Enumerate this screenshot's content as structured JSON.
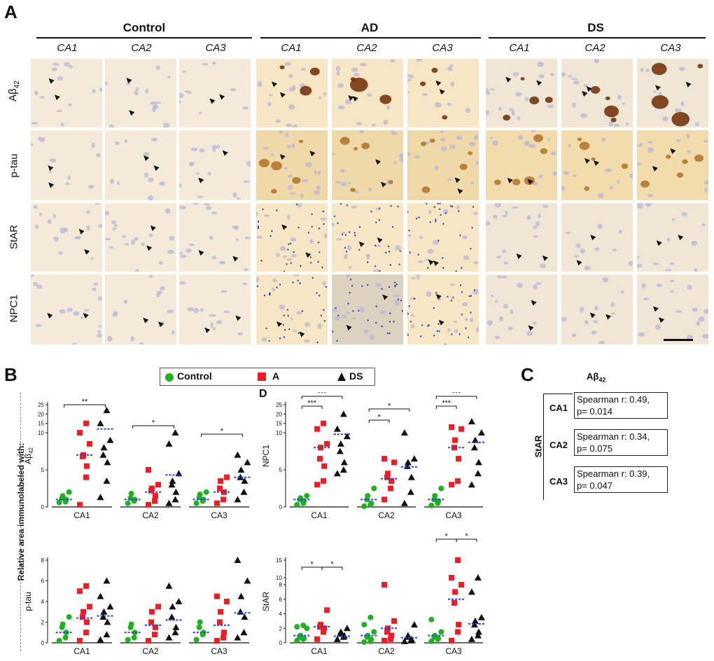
{
  "panelA": {
    "letter": "A",
    "groups": [
      {
        "name": "Control",
        "subs": [
          "CA1",
          "CA2",
          "CA3"
        ]
      },
      {
        "name": "AD",
        "subs": [
          "CA1",
          "CA2",
          "CA3"
        ]
      },
      {
        "name": "DS",
        "subs": [
          "CA1",
          "CA2",
          "CA3"
        ]
      }
    ],
    "rows": [
      "Aβ42",
      "p-tau",
      "StAR",
      "NPC1"
    ],
    "row_label_ab": {
      "base": "Aβ",
      "sub": "42"
    }
  },
  "panelB": {
    "letter": "B",
    "legend": {
      "control": "Control",
      "ad": "A",
      "ds": "DS"
    },
    "colors": {
      "control": "#22b022",
      "ad": "#ee1c24",
      "ds": "#111111",
      "median": "#2a3ff0"
    },
    "ylabel": "Relative area immunolabeled with:"
  },
  "panelD": {
    "letter": "D"
  },
  "panelC": {
    "letter": "C",
    "title_base": "Aβ",
    "title_sub": "42",
    "side_label": "StAR",
    "rows": [
      {
        "region": "CA1",
        "line1": "Spearman r: 0.49,",
        "line2": "p= 0.014"
      },
      {
        "region": "CA2",
        "line1": "Spearman r: 0.34,",
        "line2": "p= 0.075"
      },
      {
        "region": "CA3",
        "line1": "Spearman r: 0.39,",
        "line2": "p= 0.047"
      }
    ]
  },
  "chart_data": [
    {
      "type": "scatter",
      "title": "Aβ42",
      "ylabel": "Aβ42",
      "yticks": [
        "0",
        "5",
        "10",
        "15",
        "20",
        "25"
      ],
      "categories": [
        "CA1",
        "CA2",
        "CA3"
      ],
      "series": [
        {
          "name": "Control",
          "values": [
            [
              0.6,
              0.7,
              1.0,
              1.2,
              1.5,
              2.0
            ],
            [
              0.5,
              0.8,
              1.0,
              1.2,
              1.8
            ],
            [
              0.5,
              0.8,
              1.0,
              1.3,
              1.7,
              2.0
            ]
          ],
          "medians": [
            1.0,
            1.0,
            1.0
          ]
        },
        {
          "name": "A",
          "values": [
            [
              0.3,
              4.0,
              5.5,
              6.8,
              7.0,
              8.5,
              10.0,
              15.0
            ],
            [
              0.3,
              0.8,
              1.5,
              2.2,
              2.5,
              3.0,
              5.0
            ],
            [
              0.5,
              1.0,
              2.0,
              2.5,
              3.5,
              4.0
            ]
          ],
          "medians": [
            7.0,
            2.0,
            2.0
          ]
        },
        {
          "name": "DS",
          "values": [
            [
              1.3,
              3.5,
              6.0,
              7.0,
              8.0,
              9.0,
              15.0,
              22.0
            ],
            [
              0.5,
              1.0,
              2.0,
              3.0,
              3.5,
              4.5,
              8.5,
              10.0
            ],
            [
              1.0,
              2.0,
              3.5,
              4.0,
              5.0,
              6.0,
              7.0
            ]
          ],
          "medians": [
            12.0,
            4.3,
            4.0
          ]
        }
      ],
      "significance": [
        {
          "region": "CA1",
          "pair": "Control-DS",
          "label": "**"
        },
        {
          "region": "CA2",
          "pair": "Control-DS",
          "label": "*"
        },
        {
          "region": "CA3",
          "pair": "Control-DS",
          "label": "*"
        }
      ]
    },
    {
      "type": "scatter",
      "title": "NPC1",
      "ylabel": "NPC1",
      "yticks": [
        "0",
        "5",
        "10",
        "15",
        "20",
        "25"
      ],
      "categories": [
        "CA1",
        "CA2",
        "CA3"
      ],
      "series": [
        {
          "name": "Control",
          "values": [
            [
              0.3,
              0.5,
              0.8,
              1.0,
              1.2,
              1.5
            ],
            [
              0.1,
              0.3,
              0.5,
              1.0,
              1.5,
              2.5
            ],
            [
              0.2,
              0.5,
              0.8,
              1.0,
              1.5,
              2.5
            ]
          ],
          "medians": [
            1.0,
            1.0,
            1.0
          ]
        },
        {
          "name": "A",
          "values": [
            [
              3.0,
              3.5,
              5.5,
              6.5,
              8.0,
              8.5,
              12.0,
              15.0
            ],
            [
              1.0,
              2.5,
              3.5,
              4.0,
              4.5,
              6.0,
              6.5
            ],
            [
              3.0,
              3.5,
              6.5,
              8.0,
              9.0,
              12.0,
              13.0
            ]
          ],
          "medians": [
            8.0,
            3.8,
            8.0
          ]
        },
        {
          "name": "DS",
          "values": [
            [
              4.5,
              5.0,
              6.0,
              7.5,
              8.5,
              9.5,
              12.0,
              20.0
            ],
            [
              0.5,
              2.0,
              4.0,
              5.5,
              6.0,
              6.5,
              10.0
            ],
            [
              3.0,
              4.5,
              6.0,
              8.0,
              9.0,
              10.0,
              16.0
            ]
          ],
          "medians": [
            9.8,
            5.4,
            8.7
          ]
        }
      ],
      "significance": [
        {
          "region": "CA1",
          "pair": "Control-A",
          "label": "***"
        },
        {
          "region": "CA1",
          "pair": "Control-DS",
          "label": "***"
        },
        {
          "region": "CA2",
          "pair": "Control-A",
          "label": "*"
        },
        {
          "region": "CA2",
          "pair": "Control-DS",
          "label": "*"
        },
        {
          "region": "CA3",
          "pair": "Control-A",
          "label": "***"
        },
        {
          "region": "CA3",
          "pair": "Control-DS",
          "label": "***"
        }
      ]
    },
    {
      "type": "scatter",
      "title": "p-tau",
      "ylabel": "p-tau",
      "yticks": [
        "0",
        "2",
        "4",
        "6",
        "8"
      ],
      "categories": [
        "CA1",
        "CA2",
        "CA3"
      ],
      "series": [
        {
          "name": "Control",
          "values": [
            [
              0.2,
              0.5,
              1.0,
              1.5,
              1.8,
              2.5
            ],
            [
              0.3,
              0.5,
              1.0,
              1.5,
              1.8
            ],
            [
              0.3,
              0.8,
              1.0,
              1.5,
              2.0
            ]
          ],
          "medians": [
            1.0,
            1.0,
            1.0
          ]
        },
        {
          "name": "A",
          "values": [
            [
              0.2,
              1.0,
              2.0,
              2.5,
              3.0,
              3.5,
              5.0,
              5.5
            ],
            [
              0.2,
              0.8,
              1.5,
              2.0,
              3.0,
              3.5
            ],
            [
              0.2,
              0.5,
              1.0,
              2.0,
              3.0,
              4.0,
              4.5
            ]
          ],
          "medians": [
            2.4,
            1.7,
            1.7
          ]
        },
        {
          "name": "DS",
          "values": [
            [
              0.3,
              0.8,
              2.0,
              2.5,
              3.0,
              3.5,
              4.5,
              6.0
            ],
            [
              0.5,
              1.0,
              1.5,
              2.5,
              3.5,
              4.0,
              5.5
            ],
            [
              0.5,
              1.0,
              2.5,
              3.0,
              4.5,
              6.0,
              8.0
            ]
          ],
          "medians": [
            2.6,
            2.2,
            2.9
          ]
        }
      ],
      "significance": []
    },
    {
      "type": "scatter",
      "title": "StAR",
      "ylabel": "StAR",
      "yticks": [
        "0",
        "2",
        "4",
        "6",
        "8",
        "10",
        "15"
      ],
      "categories": [
        "CA1",
        "CA2",
        "CA3"
      ],
      "series": [
        {
          "name": "Control",
          "values": [
            [
              0.3,
              0.5,
              0.6,
              0.8,
              1.0,
              2.0,
              2.2,
              2.4
            ],
            [
              0.1,
              0.2,
              0.5,
              0.8,
              1.0,
              1.5,
              2.5,
              3.5
            ],
            [
              0.2,
              0.5,
              0.6,
              0.8,
              1.0,
              1.5,
              3.2
            ]
          ],
          "medians": [
            1.0,
            1.0,
            1.0
          ]
        },
        {
          "name": "A",
          "values": [
            [
              0.5,
              1.5,
              2.0,
              2.2,
              2.5,
              4.5
            ],
            [
              0.3,
              0.5,
              1.0,
              1.5,
              2.0,
              3.0,
              8.0
            ],
            [
              0.3,
              1.5,
              2.5,
              5.5,
              7.0,
              8.0,
              10.0,
              15.0
            ]
          ],
          "medians": [
            2.2,
            2.0,
            6.0
          ]
        },
        {
          "name": "DS",
          "values": [
            [
              0.5,
              0.8,
              1.0,
              1.2,
              1.5,
              2.0
            ],
            [
              0.2,
              0.3,
              0.5,
              0.8,
              1.0,
              2.5
            ],
            [
              0.5,
              1.0,
              1.5,
              2.5,
              3.0,
              3.5,
              7.0,
              10.0
            ]
          ],
          "medians": [
            0.9,
            0.7,
            2.6
          ]
        }
      ],
      "significance": [
        {
          "region": "CA1",
          "pair": "Control-A",
          "label": "*"
        },
        {
          "region": "CA1",
          "pair": "A-DS",
          "label": "*"
        },
        {
          "region": "CA3",
          "pair": "Control-A",
          "label": "*"
        },
        {
          "region": "CA3",
          "pair": "A-DS",
          "label": "*"
        }
      ]
    }
  ]
}
